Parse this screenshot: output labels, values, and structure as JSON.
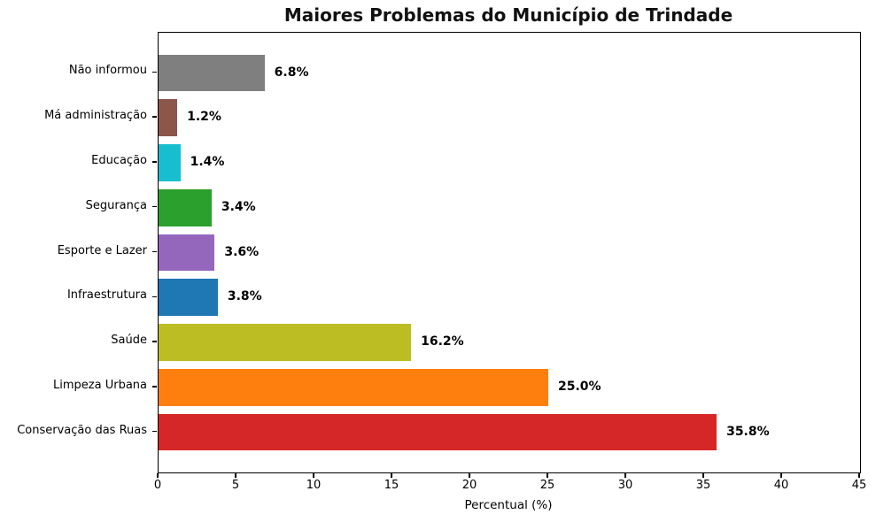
{
  "chart_data": {
    "type": "bar",
    "orientation": "horizontal",
    "title": "Maiores Problemas do Município de Trindade",
    "xlabel": "Percentual (%)",
    "ylabel": "",
    "xlim": [
      0,
      45
    ],
    "x_ticks": [
      0,
      5,
      10,
      15,
      20,
      25,
      30,
      35,
      40,
      45
    ],
    "grid": false,
    "legend": null,
    "bars": [
      {
        "label": "Não informou",
        "value": 6.8,
        "value_label": "6.8%",
        "color": "#7f7f7f"
      },
      {
        "label": "Má administração",
        "value": 1.2,
        "value_label": "1.2%",
        "color": "#8c564b"
      },
      {
        "label": "Educação",
        "value": 1.4,
        "value_label": "1.4%",
        "color": "#17becf"
      },
      {
        "label": "Segurança",
        "value": 3.4,
        "value_label": "3.4%",
        "color": "#2ca02c"
      },
      {
        "label": "Esporte e Lazer",
        "value": 3.6,
        "value_label": "3.6%",
        "color": "#9467bd"
      },
      {
        "label": "Infraestrutura",
        "value": 3.8,
        "value_label": "3.8%",
        "color": "#1f77b4"
      },
      {
        "label": "Saúde",
        "value": 16.2,
        "value_label": "16.2%",
        "color": "#bcbd22"
      },
      {
        "label": "Limpeza Urbana",
        "value": 25.0,
        "value_label": "25.0%",
        "color": "#ff7f0e"
      },
      {
        "label": "Conservação das Ruas",
        "value": 35.8,
        "value_label": "35.8%",
        "color": "#d62728"
      }
    ],
    "colors": {
      "axis": "#000000",
      "background": "#ffffff",
      "text": "#000000"
    }
  }
}
